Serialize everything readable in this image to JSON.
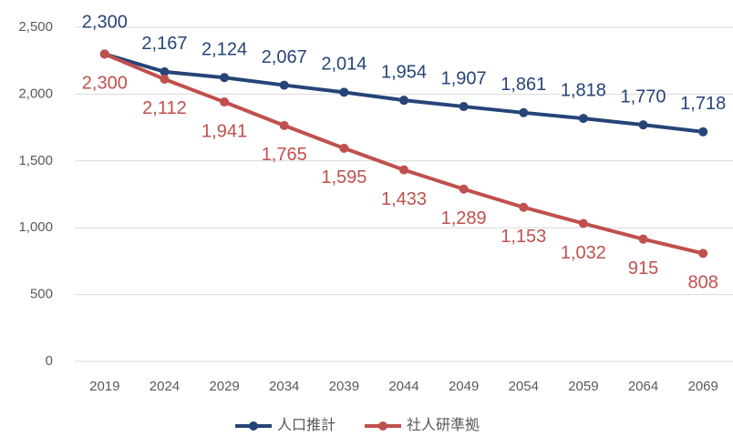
{
  "chart_data": {
    "type": "line",
    "categories": [
      "2019",
      "2024",
      "2029",
      "2034",
      "2039",
      "2044",
      "2049",
      "2054",
      "2059",
      "2064",
      "2069"
    ],
    "series": [
      {
        "name": "人口推計",
        "color": "#264478",
        "values": [
          2300,
          2167,
          2124,
          2067,
          2014,
          1954,
          1907,
          1861,
          1818,
          1770,
          1718
        ],
        "value_labels": [
          "2,300",
          "2,167",
          "2,124",
          "2,067",
          "2,014",
          "1,954",
          "1,907",
          "1,861",
          "1,818",
          "1,770",
          "1,718"
        ]
      },
      {
        "name": "社人研準拠",
        "color": "#c0504d",
        "values": [
          2300,
          2112,
          1941,
          1765,
          1595,
          1433,
          1289,
          1153,
          1032,
          915,
          808
        ],
        "value_labels": [
          "2,300",
          "2,112",
          "1,941",
          "1,765",
          "1,595",
          "1,433",
          "1,289",
          "1,153",
          "1,032",
          "915",
          "808"
        ]
      }
    ],
    "ylim": [
      0,
      2500
    ],
    "yticks": [
      0,
      500,
      {
        "value": 1000,
        "label": "1,000"
      },
      {
        "value": 1500,
        "label": "1,500"
      },
      {
        "value": 2000,
        "label": "2,000"
      },
      {
        "value": 2500,
        "label": "2,500"
      }
    ],
    "grid": true,
    "legend": "bottom"
  }
}
